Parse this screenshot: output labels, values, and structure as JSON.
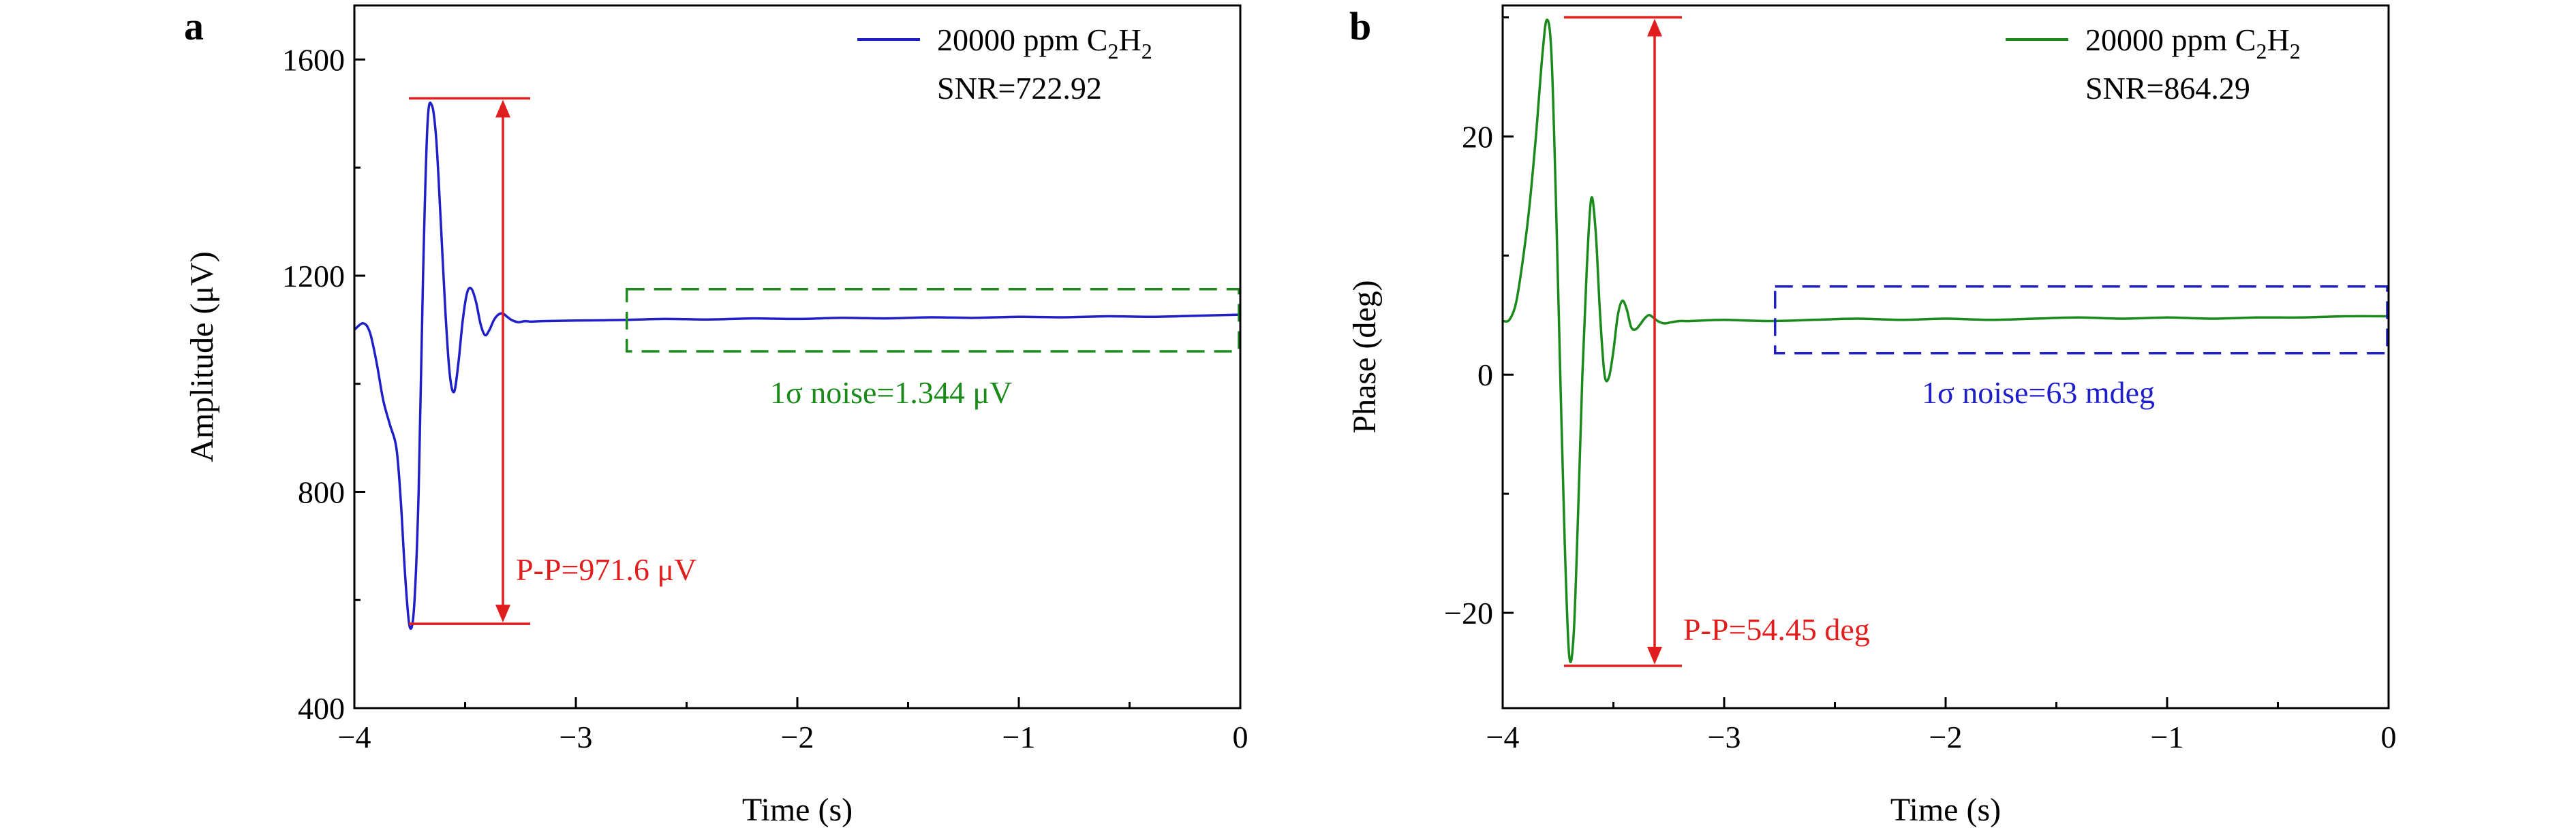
{
  "chart_data": [
    {
      "type": "line",
      "panel": "a",
      "xlabel": "Time (s)",
      "ylabel": "Amplitude (μV)",
      "xlim": [
        -4,
        0
      ],
      "ylim": [
        400,
        1700
      ],
      "xticks": [
        -4,
        -3,
        -2,
        -1,
        0
      ],
      "xtick_labels": [
        "−4",
        "−3",
        "−2",
        "−1",
        "0"
      ],
      "yticks": [
        400,
        800,
        1200,
        1600
      ],
      "ytick_labels": [
        "400",
        "800",
        "1200",
        "1600"
      ],
      "legend": {
        "position": "top-right",
        "label_main": "20000 ppm C",
        "sub1": "2",
        "mid": "H",
        "sub2": "2",
        "snr": "SNR=722.92"
      },
      "colors": {
        "series": "#1f1fc8",
        "marker": "#e01e1e",
        "noise": "#1a8a1a"
      },
      "series": [
        {
          "x": [
            -4.0,
            -3.96,
            -3.93,
            -3.9,
            -3.87,
            -3.84,
            -3.81,
            -3.79,
            -3.77,
            -3.75,
            -3.73,
            -3.71,
            -3.69,
            -3.67,
            -3.65,
            -3.63,
            -3.61,
            -3.59,
            -3.57,
            -3.55,
            -3.53,
            -3.51,
            -3.49,
            -3.47,
            -3.45,
            -3.43,
            -3.41,
            -3.39,
            -3.37,
            -3.35,
            -3.33,
            -3.31,
            -3.29,
            -3.26,
            -3.23,
            -3.2,
            -3.15,
            -3.0,
            -2.8,
            -2.6,
            -2.4,
            -2.2,
            -2.0,
            -1.8,
            -1.6,
            -1.4,
            -1.2,
            -1.0,
            -0.8,
            -0.6,
            -0.4,
            -0.2,
            0.0
          ],
          "y": [
            1100,
            1112,
            1095,
            1040,
            970,
            925,
            880,
            780,
            640,
            550,
            590,
            800,
            1200,
            1480,
            1515,
            1450,
            1300,
            1140,
            1020,
            985,
            1040,
            1120,
            1170,
            1175,
            1150,
            1110,
            1090,
            1100,
            1118,
            1128,
            1130,
            1124,
            1118,
            1114,
            1116,
            1115,
            1116,
            1117,
            1118,
            1120,
            1119,
            1121,
            1120,
            1122,
            1121,
            1123,
            1122,
            1124,
            1123,
            1125,
            1124,
            1126,
            1128
          ]
        }
      ],
      "annotations": {
        "pp_label": "P-P=971.6 μV",
        "pp_top": 1528,
        "pp_bottom": 556,
        "noise_label": "1σ noise=1.344 μV",
        "noise_box_x": [
          -2.77,
          0
        ],
        "noise_box_y": [
          1060,
          1175
        ]
      }
    },
    {
      "type": "line",
      "panel": "b",
      "xlabel": "Time (s)",
      "ylabel": "Phase (deg)",
      "xlim": [
        -4,
        0
      ],
      "ylim": [
        -28,
        31
      ],
      "xticks": [
        -4,
        -3,
        -2,
        -1,
        0
      ],
      "xtick_labels": [
        "−4",
        "−3",
        "−2",
        "−1",
        "0"
      ],
      "yticks": [
        -20,
        0,
        20
      ],
      "ytick_labels": [
        "−20",
        "0",
        "20"
      ],
      "legend": {
        "position": "top-right",
        "label_main": "20000 ppm C",
        "sub1": "2",
        "mid": "H",
        "sub2": "2",
        "snr": "SNR=864.29"
      },
      "colors": {
        "series": "#1a8a1a",
        "marker": "#e01e1e",
        "noise": "#1f1fc8"
      },
      "series": [
        {
          "x": [
            -4.0,
            -3.97,
            -3.94,
            -3.91,
            -3.88,
            -3.85,
            -3.82,
            -3.8,
            -3.78,
            -3.76,
            -3.74,
            -3.72,
            -3.7,
            -3.68,
            -3.66,
            -3.64,
            -3.62,
            -3.6,
            -3.58,
            -3.56,
            -3.54,
            -3.52,
            -3.5,
            -3.48,
            -3.46,
            -3.44,
            -3.42,
            -3.4,
            -3.38,
            -3.36,
            -3.34,
            -3.32,
            -3.3,
            -3.27,
            -3.24,
            -3.2,
            -3.15,
            -3.0,
            -2.8,
            -2.6,
            -2.4,
            -2.2,
            -2.0,
            -1.8,
            -1.6,
            -1.4,
            -1.2,
            -1.0,
            -0.8,
            -0.6,
            -0.4,
            -0.2,
            0.0
          ],
          "y": [
            4.5,
            4.6,
            6.0,
            9.5,
            14.0,
            20.0,
            27.0,
            29.8,
            27.0,
            15.0,
            0.0,
            -14.0,
            -23.5,
            -22.0,
            -12.0,
            0.0,
            9.0,
            14.8,
            12.0,
            5.0,
            0.0,
            -0.2,
            2.0,
            5.0,
            6.2,
            5.5,
            4.0,
            3.8,
            4.2,
            4.7,
            5.0,
            4.8,
            4.5,
            4.3,
            4.4,
            4.5,
            4.5,
            4.6,
            4.5,
            4.6,
            4.7,
            4.6,
            4.7,
            4.6,
            4.7,
            4.8,
            4.7,
            4.8,
            4.7,
            4.8,
            4.8,
            4.9,
            4.9
          ]
        }
      ],
      "annotations": {
        "pp_label": "P-P=54.45 deg",
        "pp_top": 30.0,
        "pp_bottom": -24.45,
        "noise_label": "1σ noise=63 mdeg",
        "noise_box_x": [
          -2.77,
          0
        ],
        "noise_box_y": [
          1.8,
          7.4
        ]
      }
    }
  ]
}
